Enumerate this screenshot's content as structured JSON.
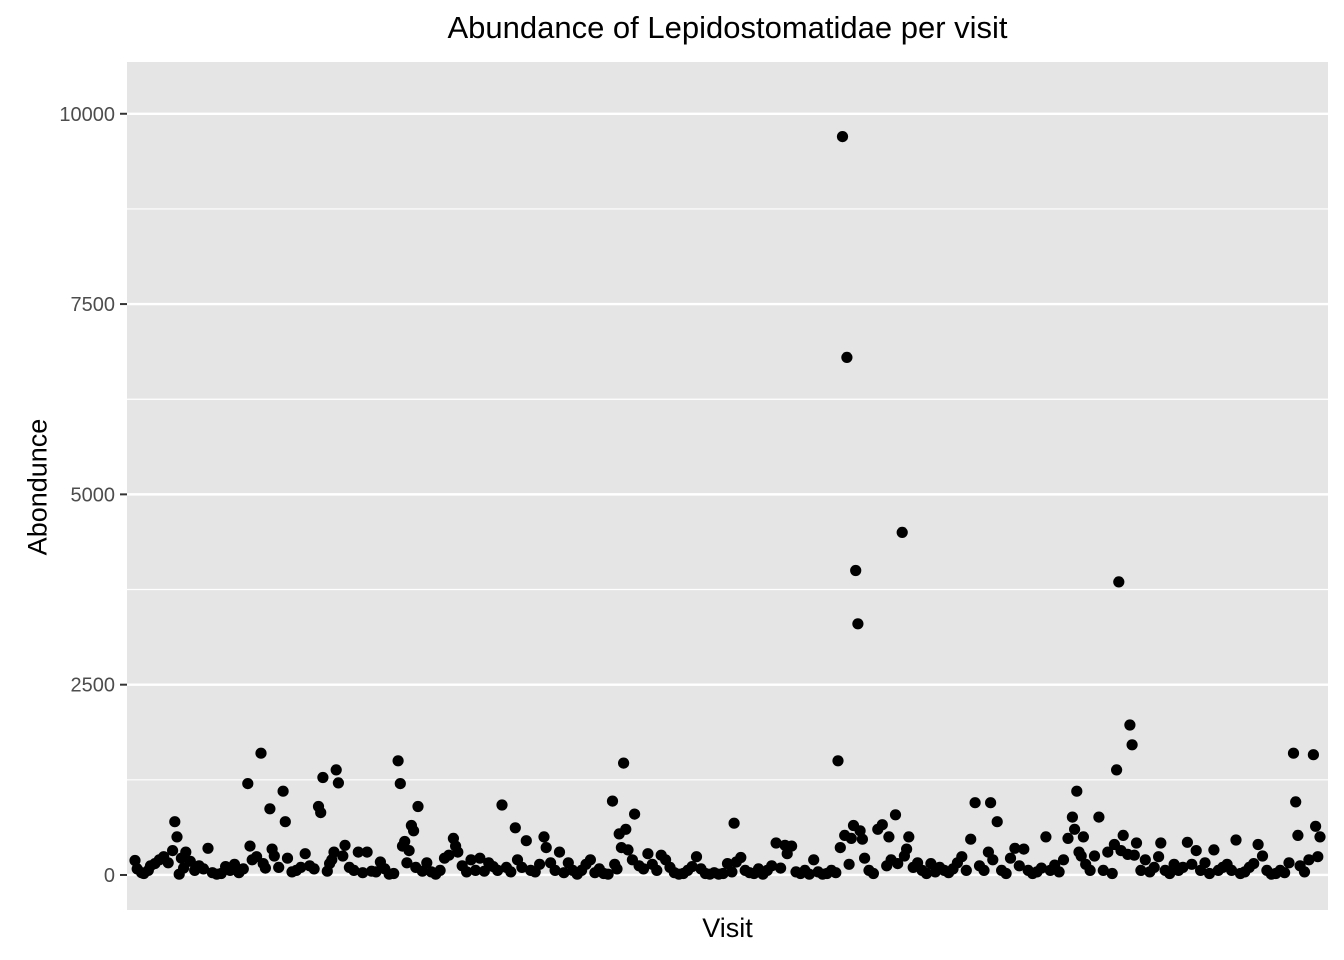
{
  "chart_data": {
    "type": "scatter",
    "title": "Abundance of Lepidostomatidae per visit",
    "xlabel": "Visit",
    "ylabel": "Abondunce",
    "ylim": [
      -460,
      10680
    ],
    "yticks": [
      0,
      2500,
      5000,
      7500,
      10000
    ],
    "ytick_labels": [
      "0",
      "2500",
      "5000",
      "7500",
      "10000"
    ],
    "x_tick_labels": "none",
    "grid": true,
    "panel_color": "#e5e5e5",
    "grid_color": "#ffffff",
    "point_color": "#000000",
    "series": [
      {
        "points": [
          [
            1,
            190
          ],
          [
            2,
            80
          ],
          [
            4,
            30
          ],
          [
            5,
            20
          ],
          [
            7,
            60
          ],
          [
            8,
            120
          ],
          [
            10,
            150
          ],
          [
            12,
            200
          ],
          [
            14,
            240
          ],
          [
            16,
            160
          ],
          [
            18,
            320
          ],
          [
            19,
            700
          ],
          [
            20,
            500
          ],
          [
            21,
            10
          ],
          [
            22,
            220
          ],
          [
            23,
            90
          ],
          [
            24,
            300
          ],
          [
            26,
            180
          ],
          [
            28,
            60
          ],
          [
            30,
            120
          ],
          [
            32,
            80
          ],
          [
            34,
            350
          ],
          [
            36,
            30
          ],
          [
            38,
            10
          ],
          [
            40,
            20
          ],
          [
            42,
            110
          ],
          [
            44,
            60
          ],
          [
            46,
            140
          ],
          [
            48,
            30
          ],
          [
            50,
            80
          ],
          [
            52,
            1200
          ],
          [
            53,
            380
          ],
          [
            54,
            200
          ],
          [
            56,
            240
          ],
          [
            58,
            1600
          ],
          [
            59,
            150
          ],
          [
            60,
            90
          ],
          [
            62,
            870
          ],
          [
            63,
            340
          ],
          [
            64,
            250
          ],
          [
            66,
            100
          ],
          [
            68,
            1100
          ],
          [
            69,
            700
          ],
          [
            70,
            220
          ],
          [
            72,
            40
          ],
          [
            74,
            60
          ],
          [
            76,
            100
          ],
          [
            78,
            280
          ],
          [
            80,
            120
          ],
          [
            82,
            80
          ],
          [
            84,
            900
          ],
          [
            85,
            820
          ],
          [
            86,
            1280
          ],
          [
            88,
            50
          ],
          [
            89,
            150
          ],
          [
            90,
            200
          ],
          [
            91,
            300
          ],
          [
            92,
            1380
          ],
          [
            93,
            1210
          ],
          [
            95,
            250
          ],
          [
            96,
            390
          ],
          [
            98,
            100
          ],
          [
            100,
            60
          ],
          [
            102,
            300
          ],
          [
            104,
            30
          ],
          [
            106,
            300
          ],
          [
            108,
            50
          ],
          [
            110,
            40
          ],
          [
            112,
            170
          ],
          [
            114,
            80
          ],
          [
            116,
            10
          ],
          [
            118,
            20
          ],
          [
            120,
            1500
          ],
          [
            121,
            1200
          ],
          [
            122,
            380
          ],
          [
            123,
            440
          ],
          [
            124,
            160
          ],
          [
            125,
            320
          ],
          [
            126,
            650
          ],
          [
            127,
            580
          ],
          [
            128,
            100
          ],
          [
            129,
            900
          ],
          [
            131,
            50
          ],
          [
            133,
            160
          ],
          [
            135,
            40
          ],
          [
            137,
            10
          ],
          [
            139,
            60
          ],
          [
            141,
            220
          ],
          [
            143,
            260
          ],
          [
            145,
            480
          ],
          [
            146,
            380
          ],
          [
            147,
            300
          ],
          [
            149,
            120
          ],
          [
            151,
            40
          ],
          [
            153,
            200
          ],
          [
            155,
            60
          ],
          [
            157,
            220
          ],
          [
            159,
            50
          ],
          [
            161,
            160
          ],
          [
            163,
            110
          ],
          [
            165,
            60
          ],
          [
            167,
            920
          ],
          [
            169,
            100
          ],
          [
            171,
            40
          ],
          [
            173,
            620
          ],
          [
            174,
            200
          ],
          [
            176,
            100
          ],
          [
            178,
            450
          ],
          [
            180,
            60
          ],
          [
            182,
            40
          ],
          [
            184,
            140
          ],
          [
            186,
            500
          ],
          [
            187,
            360
          ],
          [
            189,
            160
          ],
          [
            191,
            60
          ],
          [
            193,
            300
          ],
          [
            195,
            30
          ],
          [
            197,
            160
          ],
          [
            199,
            60
          ],
          [
            201,
            10
          ],
          [
            203,
            60
          ],
          [
            205,
            140
          ],
          [
            207,
            200
          ],
          [
            209,
            30
          ],
          [
            211,
            80
          ],
          [
            213,
            20
          ],
          [
            215,
            10
          ],
          [
            217,
            970
          ],
          [
            218,
            140
          ],
          [
            219,
            80
          ],
          [
            220,
            540
          ],
          [
            221,
            360
          ],
          [
            222,
            1470
          ],
          [
            223,
            600
          ],
          [
            224,
            330
          ],
          [
            226,
            200
          ],
          [
            227,
            800
          ],
          [
            229,
            120
          ],
          [
            231,
            80
          ],
          [
            233,
            280
          ],
          [
            235,
            140
          ],
          [
            237,
            60
          ],
          [
            239,
            260
          ],
          [
            241,
            200
          ],
          [
            243,
            100
          ],
          [
            245,
            30
          ],
          [
            247,
            10
          ],
          [
            249,
            20
          ],
          [
            251,
            60
          ],
          [
            253,
            110
          ],
          [
            255,
            240
          ],
          [
            257,
            80
          ],
          [
            259,
            20
          ],
          [
            261,
            10
          ],
          [
            263,
            30
          ],
          [
            265,
            10
          ],
          [
            267,
            20
          ],
          [
            269,
            150
          ],
          [
            271,
            40
          ],
          [
            272,
            680
          ],
          [
            273,
            170
          ],
          [
            275,
            230
          ],
          [
            277,
            60
          ],
          [
            279,
            30
          ],
          [
            281,
            20
          ],
          [
            283,
            80
          ],
          [
            285,
            10
          ],
          [
            287,
            60
          ],
          [
            289,
            120
          ],
          [
            291,
            420
          ],
          [
            293,
            90
          ],
          [
            295,
            390
          ],
          [
            296,
            280
          ],
          [
            298,
            380
          ],
          [
            300,
            40
          ],
          [
            302,
            20
          ],
          [
            304,
            60
          ],
          [
            306,
            10
          ],
          [
            308,
            200
          ],
          [
            310,
            40
          ],
          [
            312,
            10
          ],
          [
            314,
            20
          ],
          [
            316,
            60
          ],
          [
            318,
            30
          ],
          [
            319,
            1500
          ],
          [
            320,
            360
          ],
          [
            321,
            9700
          ],
          [
            322,
            520
          ],
          [
            323,
            6800
          ],
          [
            324,
            140
          ],
          [
            325,
            480
          ],
          [
            326,
            650
          ],
          [
            327,
            4000
          ],
          [
            328,
            3300
          ],
          [
            329,
            580
          ],
          [
            330,
            470
          ],
          [
            331,
            220
          ],
          [
            333,
            60
          ],
          [
            335,
            20
          ],
          [
            337,
            600
          ],
          [
            339,
            660
          ],
          [
            341,
            120
          ],
          [
            342,
            500
          ],
          [
            343,
            200
          ],
          [
            345,
            790
          ],
          [
            346,
            150
          ],
          [
            348,
            4500
          ],
          [
            349,
            250
          ],
          [
            350,
            340
          ],
          [
            351,
            500
          ],
          [
            353,
            100
          ],
          [
            355,
            160
          ],
          [
            357,
            60
          ],
          [
            359,
            20
          ],
          [
            361,
            150
          ],
          [
            363,
            40
          ],
          [
            365,
            100
          ],
          [
            367,
            60
          ],
          [
            369,
            30
          ],
          [
            371,
            80
          ],
          [
            373,
            160
          ],
          [
            375,
            240
          ],
          [
            377,
            60
          ],
          [
            379,
            470
          ],
          [
            381,
            950
          ],
          [
            383,
            120
          ],
          [
            385,
            60
          ],
          [
            387,
            300
          ],
          [
            388,
            950
          ],
          [
            389,
            200
          ],
          [
            391,
            700
          ],
          [
            393,
            60
          ],
          [
            395,
            20
          ],
          [
            397,
            220
          ],
          [
            399,
            350
          ],
          [
            401,
            120
          ],
          [
            403,
            340
          ],
          [
            405,
            60
          ],
          [
            407,
            20
          ],
          [
            409,
            40
          ],
          [
            411,
            90
          ],
          [
            413,
            500
          ],
          [
            415,
            60
          ],
          [
            417,
            130
          ],
          [
            419,
            40
          ],
          [
            421,
            200
          ],
          [
            423,
            480
          ],
          [
            425,
            760
          ],
          [
            426,
            600
          ],
          [
            427,
            1100
          ],
          [
            428,
            300
          ],
          [
            429,
            250
          ],
          [
            430,
            500
          ],
          [
            431,
            140
          ],
          [
            433,
            60
          ],
          [
            435,
            250
          ],
          [
            437,
            760
          ],
          [
            439,
            60
          ],
          [
            441,
            300
          ],
          [
            443,
            20
          ],
          [
            444,
            400
          ],
          [
            445,
            1380
          ],
          [
            446,
            3850
          ],
          [
            447,
            320
          ],
          [
            448,
            520
          ],
          [
            450,
            270
          ],
          [
            451,
            1970
          ],
          [
            452,
            1710
          ],
          [
            453,
            260
          ],
          [
            454,
            420
          ],
          [
            456,
            60
          ],
          [
            458,
            200
          ],
          [
            460,
            40
          ],
          [
            462,
            100
          ],
          [
            464,
            240
          ],
          [
            465,
            420
          ],
          [
            467,
            60
          ],
          [
            469,
            20
          ],
          [
            471,
            140
          ],
          [
            473,
            60
          ],
          [
            475,
            100
          ],
          [
            477,
            430
          ],
          [
            479,
            140
          ],
          [
            481,
            320
          ],
          [
            483,
            60
          ],
          [
            485,
            160
          ],
          [
            487,
            20
          ],
          [
            489,
            330
          ],
          [
            491,
            60
          ],
          [
            493,
            100
          ],
          [
            495,
            140
          ],
          [
            497,
            60
          ],
          [
            499,
            460
          ],
          [
            501,
            20
          ],
          [
            503,
            40
          ],
          [
            505,
            100
          ],
          [
            507,
            150
          ],
          [
            509,
            400
          ],
          [
            511,
            250
          ],
          [
            513,
            60
          ],
          [
            515,
            10
          ],
          [
            517,
            20
          ],
          [
            519,
            60
          ],
          [
            521,
            30
          ],
          [
            523,
            160
          ],
          [
            525,
            1600
          ],
          [
            526,
            960
          ],
          [
            527,
            520
          ],
          [
            528,
            120
          ],
          [
            530,
            40
          ],
          [
            532,
            200
          ],
          [
            534,
            1580
          ],
          [
            535,
            640
          ],
          [
            536,
            240
          ],
          [
            537,
            500
          ]
        ]
      }
    ]
  }
}
